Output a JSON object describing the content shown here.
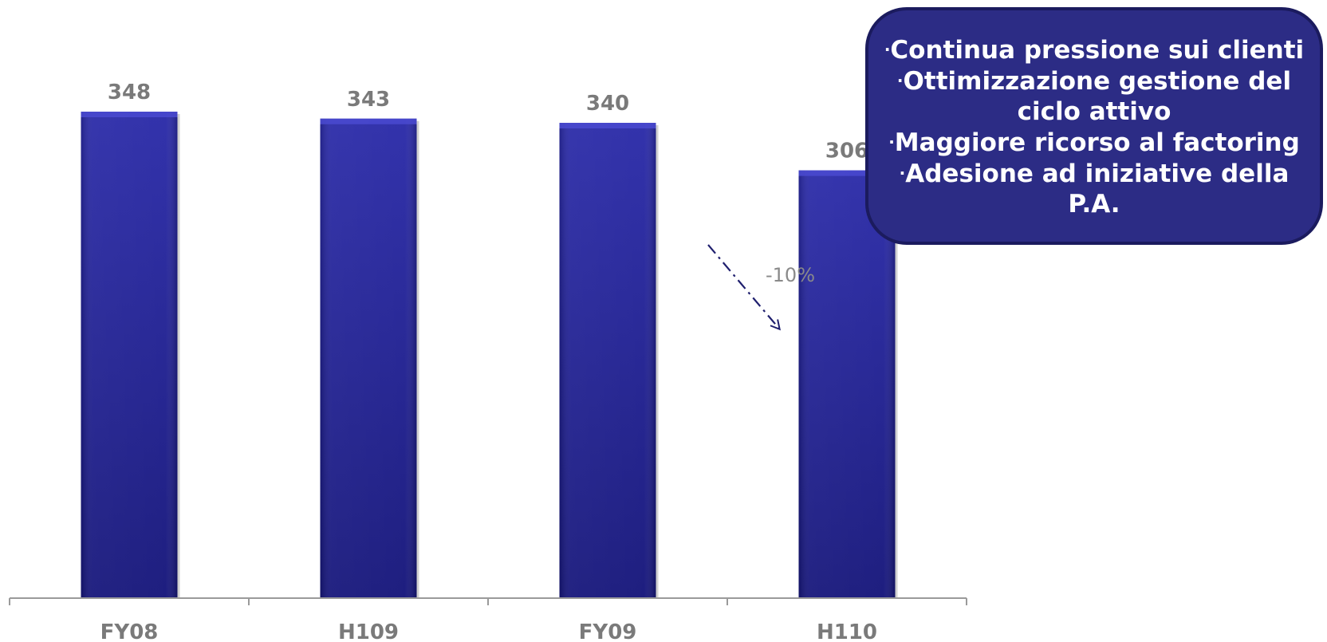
{
  "chart_data": {
    "type": "bar",
    "categories": [
      "FY08",
      "H109",
      "FY09",
      "H110"
    ],
    "values": [
      348,
      343,
      340,
      306
    ],
    "data_labels": [
      "348",
      "343",
      "340",
      "306"
    ],
    "ylim": [
      0,
      348
    ],
    "grid": false,
    "legend": "none",
    "annotation": {
      "text": "-10%",
      "from_category": "FY09",
      "to_category": "H110"
    }
  },
  "callout": {
    "bullet": "·",
    "items": [
      "Continua pressione sui clienti",
      "Ottimizzazione gestione del ciclo attivo",
      "Maggiore ricorso al factoring",
      "Adesione ad iniziative della P.A."
    ]
  },
  "colors": {
    "bar_top": "#2a2aa8",
    "bar_bottom": "#15157a",
    "axis": "#9a9a9a",
    "label_grey": "#7a7a7a",
    "callout_bg": "#2c2c85",
    "callout_border": "#1b1b5e",
    "arrow": "#1f1f6e"
  }
}
